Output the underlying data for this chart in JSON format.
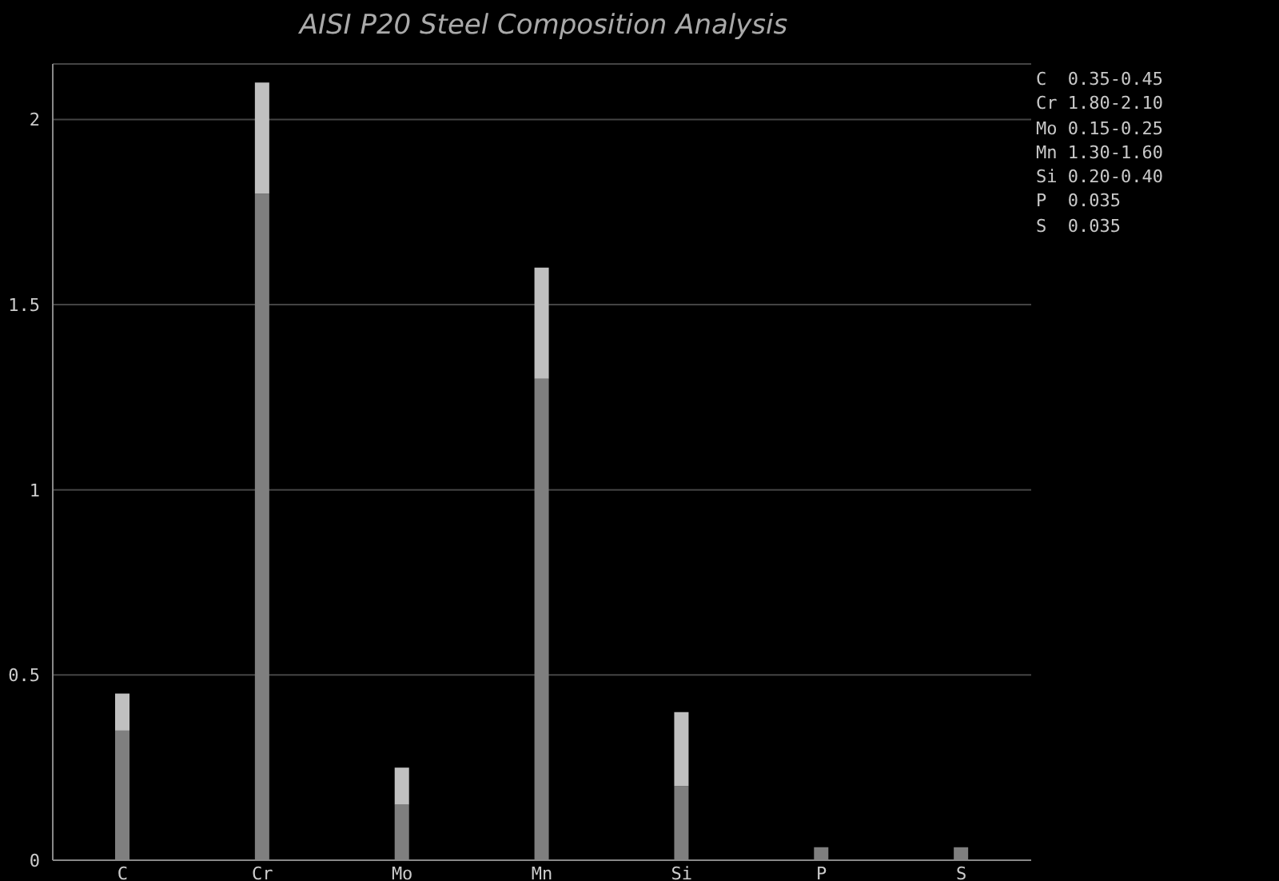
{
  "chart_data": {
    "type": "bar",
    "title": "AISI P20 Steel Composition Analysis",
    "categories": [
      "C",
      "Cr",
      "Mo",
      "Mn",
      "Si",
      "P",
      "S"
    ],
    "stacked": true,
    "series": [
      {
        "color": "#7f7f7f",
        "values": [
          0.35,
          1.8,
          0.15,
          1.3,
          0.2,
          0.035,
          0.035
        ]
      },
      {
        "color": "#c0c0c0",
        "values": [
          0.1,
          0.3,
          0.1,
          0.3,
          0.2,
          0,
          0
        ]
      }
    ],
    "ylim": [
      0,
      2.15
    ],
    "yticks": [
      0,
      0.5,
      1,
      1.5,
      2
    ],
    "grid": "y",
    "annotations": [
      "C  0.35-0.45",
      "Cr 1.80-2.10",
      "Mo 0.15-0.25",
      "Mn 1.30-1.60",
      "Si 0.20-0.40",
      "P  0.035",
      "S  0.035"
    ]
  }
}
